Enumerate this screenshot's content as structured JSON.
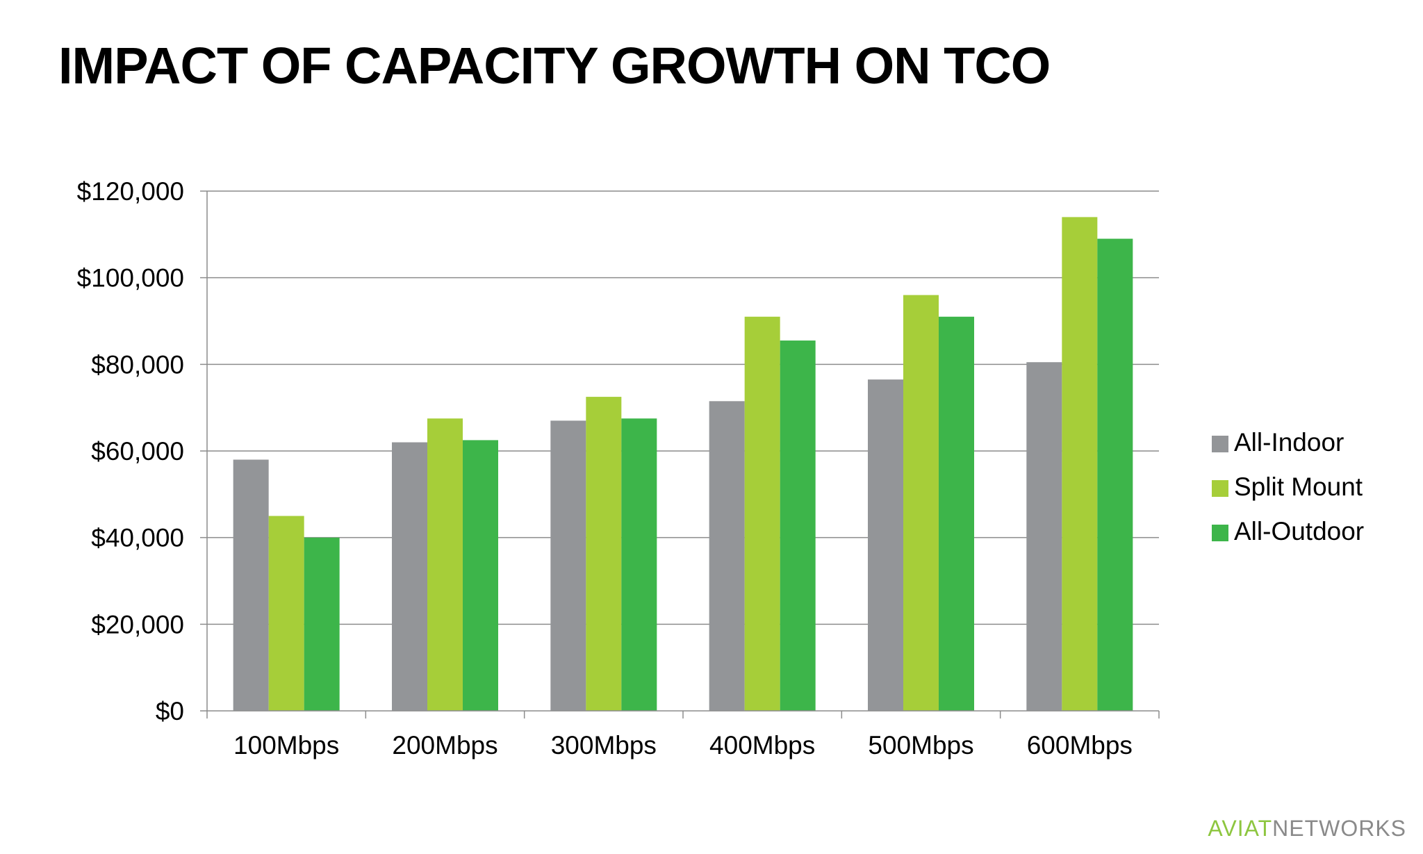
{
  "slide": {
    "title": "IMPACT OF CAPACITY GROWTH ON TCO"
  },
  "logo": {
    "brand": "AVIAT",
    "suffix": "NETWORKS",
    "brand_color": "#8dc63f",
    "suffix_color": "#8a8a8a"
  },
  "chart_data": {
    "type": "bar",
    "categories": [
      "100Mbps",
      "200Mbps",
      "300Mbps",
      "400Mbps",
      "500Mbps",
      "600Mbps"
    ],
    "series": [
      {
        "name": "All-Indoor",
        "color": "#939598",
        "values": [
          58000,
          62000,
          67000,
          71500,
          76500,
          80500
        ]
      },
      {
        "name": "Split Mount",
        "color": "#a6ce39",
        "values": [
          45000,
          67500,
          72500,
          91000,
          96000,
          114000
        ]
      },
      {
        "name": "All-Outdoor",
        "color": "#3db54a",
        "values": [
          40000,
          62500,
          67500,
          85500,
          91000,
          109000
        ]
      }
    ],
    "y_ticks": [
      "$0",
      "$20,000",
      "$40,000",
      "$60,000",
      "$80,000",
      "$100,000",
      "$120,000"
    ],
    "ylim": [
      0,
      120000
    ],
    "y_step": 20000,
    "grid": true,
    "legend_position": "right",
    "title": "",
    "xlabel": "",
    "ylabel": ""
  }
}
